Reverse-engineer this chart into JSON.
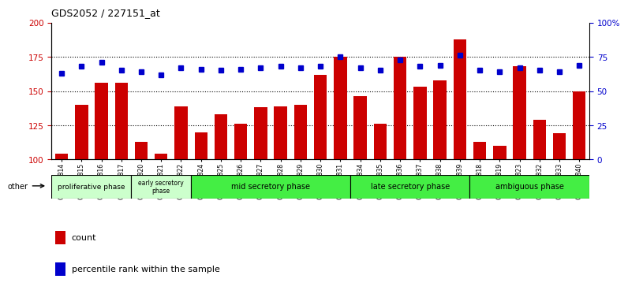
{
  "title": "GDS2052 / 227151_at",
  "samples": [
    "GSM109814",
    "GSM109815",
    "GSM109816",
    "GSM109817",
    "GSM109820",
    "GSM109821",
    "GSM109822",
    "GSM109824",
    "GSM109825",
    "GSM109826",
    "GSM109827",
    "GSM109828",
    "GSM109829",
    "GSM109830",
    "GSM109831",
    "GSM109834",
    "GSM109835",
    "GSM109836",
    "GSM109837",
    "GSM109838",
    "GSM109839",
    "GSM109818",
    "GSM109819",
    "GSM109823",
    "GSM109832",
    "GSM109833",
    "GSM109840"
  ],
  "counts": [
    104,
    140,
    156,
    156,
    113,
    104,
    139,
    120,
    133,
    126,
    138,
    139,
    140,
    162,
    175,
    146,
    126,
    175,
    153,
    158,
    188,
    113,
    110,
    168,
    129,
    119,
    150
  ],
  "percentiles": [
    63,
    68,
    71,
    65,
    64,
    62,
    67,
    66,
    65,
    66,
    67,
    68,
    67,
    68,
    75,
    67,
    65,
    73,
    68,
    69,
    76,
    65,
    64,
    67,
    65,
    64,
    69
  ],
  "phases": [
    {
      "name": "proliferative phase",
      "start": 0,
      "end": 4,
      "color": "#ccffcc",
      "fontsize": 6.5
    },
    {
      "name": "early secretory\nphase",
      "start": 4,
      "end": 7,
      "color": "#ccffcc",
      "fontsize": 5.5
    },
    {
      "name": "mid secretory phase",
      "start": 7,
      "end": 15,
      "color": "#44ee44",
      "fontsize": 7
    },
    {
      "name": "late secretory phase",
      "start": 15,
      "end": 21,
      "color": "#44ee44",
      "fontsize": 7
    },
    {
      "name": "ambiguous phase",
      "start": 21,
      "end": 27,
      "color": "#44ee44",
      "fontsize": 7
    }
  ],
  "ylim_left": [
    100,
    200
  ],
  "ylim_right": [
    0,
    100
  ],
  "yticks_left": [
    100,
    125,
    150,
    175,
    200
  ],
  "yticks_right": [
    0,
    25,
    50,
    75,
    100
  ],
  "bar_color": "#cc0000",
  "dot_color": "#0000cc",
  "background_color": "#ffffff",
  "tick_color_left": "#cc0000",
  "tick_color_right": "#0000cc",
  "grid_yticks": [
    125,
    150,
    175
  ]
}
